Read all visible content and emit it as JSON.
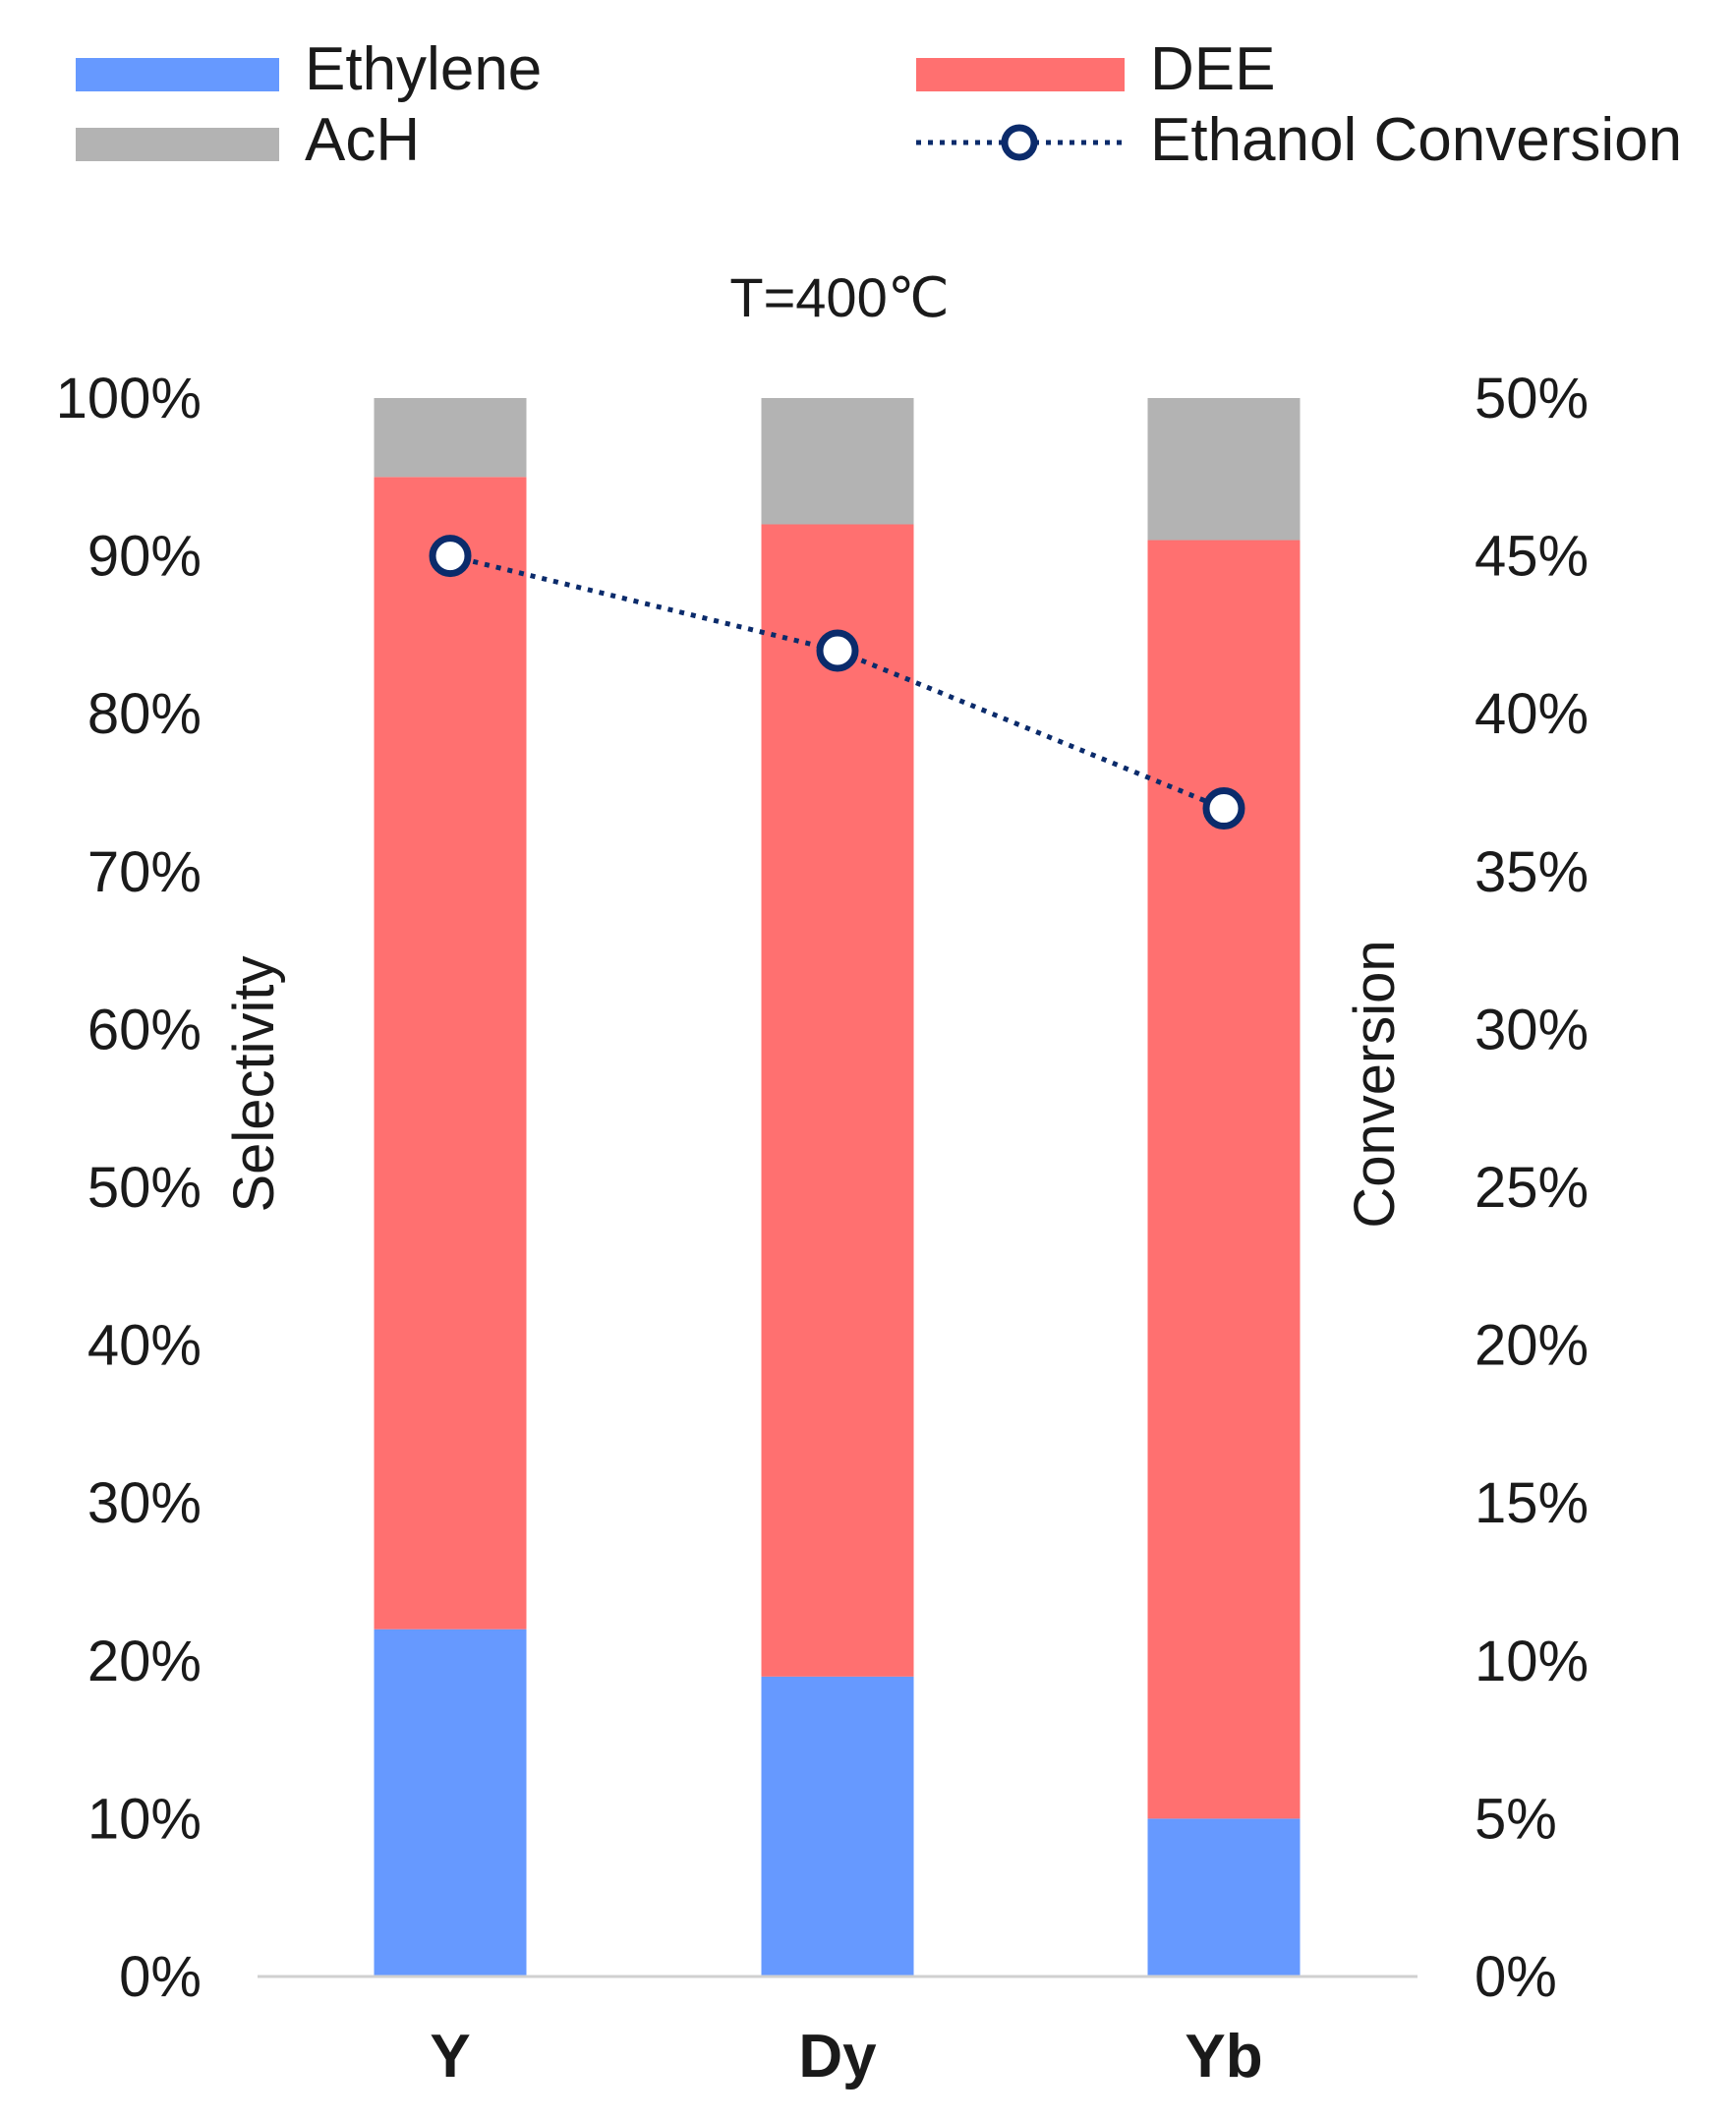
{
  "chart_data": {
    "type": "bar",
    "stacked": true,
    "title": "T=400℃",
    "categories": [
      "Y",
      "Dy",
      "Yb"
    ],
    "series": [
      {
        "name": "Ethylene",
        "values": [
          22,
          19,
          10
        ],
        "color": "#6699FF"
      },
      {
        "name": "DEE",
        "values": [
          73,
          73,
          81
        ],
        "color": "#FF7070"
      },
      {
        "name": "AcH",
        "values": [
          5,
          8,
          9
        ],
        "color": "#B3B3B3"
      }
    ],
    "line_series": {
      "name": "Ethanol Conversion",
      "values": [
        45,
        42,
        37
      ],
      "axis": "right",
      "color": "#0B2B6B",
      "style": "dotted",
      "marker": "circle"
    },
    "y_left": {
      "label": "Selectivity",
      "lim": [
        0,
        100
      ],
      "ticks": [
        "0%",
        "10%",
        "20%",
        "30%",
        "40%",
        "50%",
        "60%",
        "70%",
        "80%",
        "90%",
        "100%"
      ]
    },
    "y_right": {
      "label": "Conversion",
      "lim": [
        0,
        50
      ],
      "ticks": [
        "0%",
        "5%",
        "10%",
        "15%",
        "20%",
        "25%",
        "30%",
        "35%",
        "40%",
        "45%",
        "50%"
      ]
    },
    "legend": {
      "position": "top",
      "entries": [
        "Ethylene",
        "DEE",
        "AcH",
        "Ethanol Conversion"
      ]
    },
    "grid": false
  }
}
